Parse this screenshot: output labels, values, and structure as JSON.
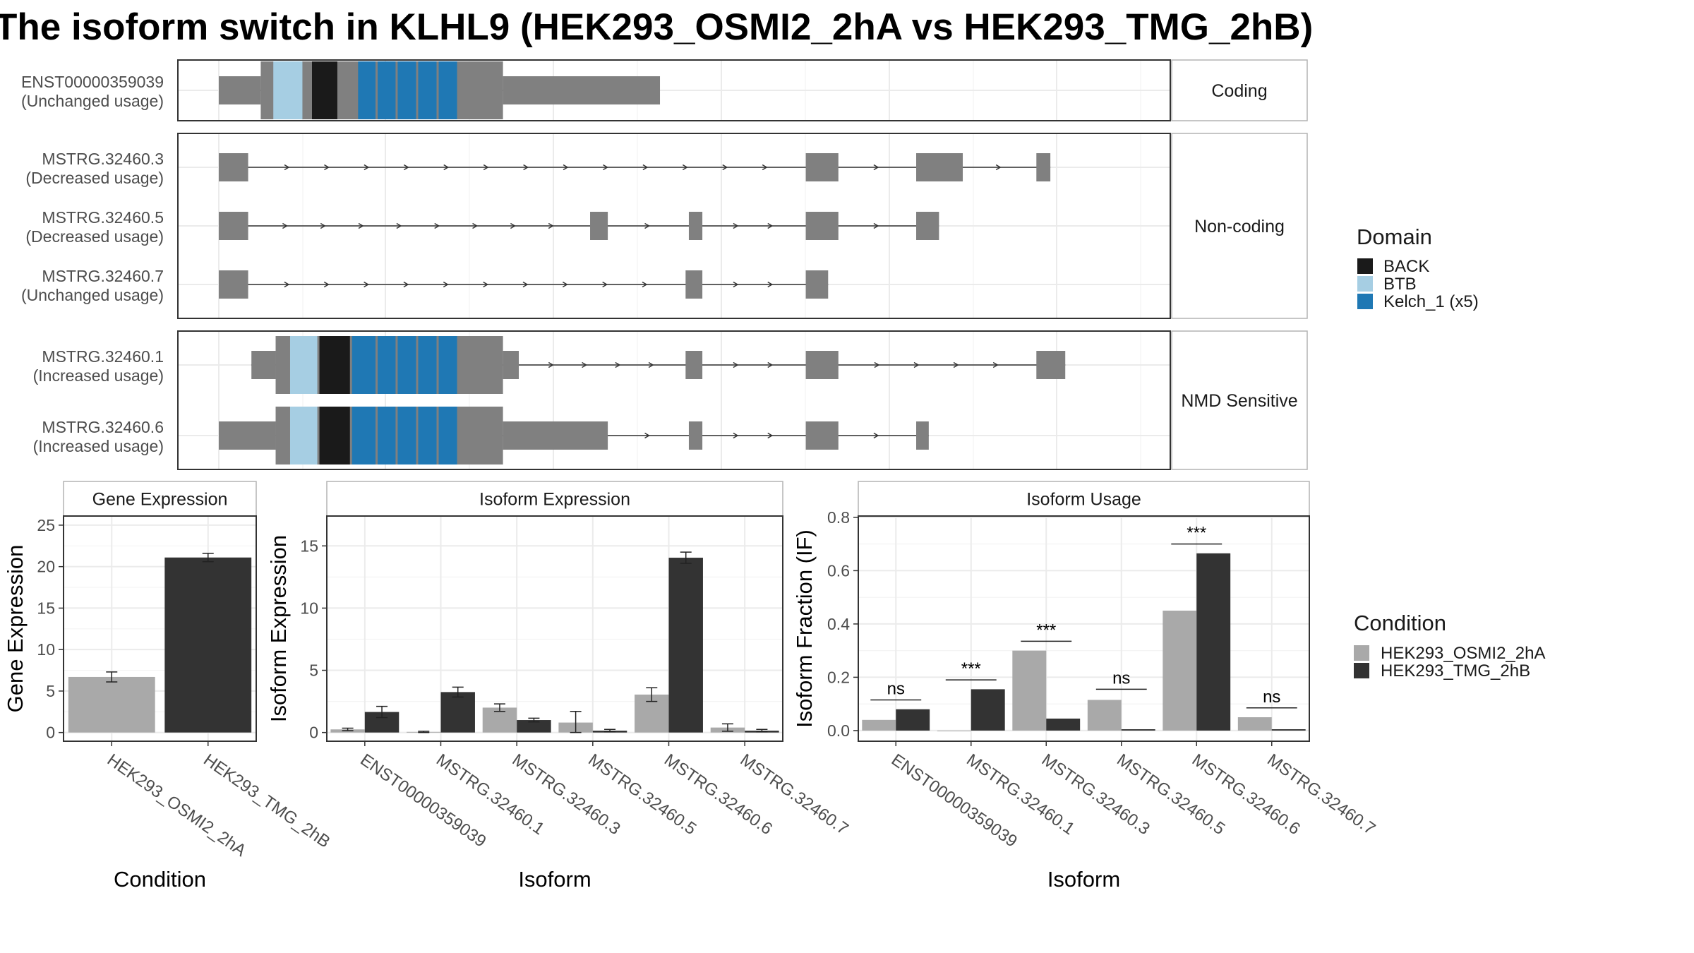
{
  "title": "The isoform switch in KLHL9 (HEK293_OSMI2_2hA vs HEK293_TMG_2hB)",
  "colors": {
    "exon": "#808080",
    "BACK": "#1a1a1a",
    "BTB": "#a6cee3",
    "Kelch": "#1f78b4",
    "cond1": "#a9a9a9",
    "cond2": "#333333",
    "grid": "#ebebeb",
    "panel_border": "#333333",
    "strip_border": "#b3b3b3"
  },
  "transcripts": {
    "groups": [
      {
        "label": "Coding",
        "isoforms": [
          {
            "id": "ENST00000359039",
            "usage": "(Unchanged usage)",
            "exons": [
              [
                0.0,
                0.09,
                "thin"
              ],
              [
                0.09,
                0.61,
                "thick"
              ],
              [
                0.61,
                0.947,
                "thin"
              ]
            ],
            "domains": [
              [
                0.117,
                0.184,
                "BTB"
              ],
              [
                0.2,
                0.259,
                "BACK"
              ],
              [
                0.299,
                0.341,
                "Kelch"
              ],
              [
                0.341,
                0.384,
                "Kelch"
              ],
              [
                0.384,
                0.428,
                "Kelch"
              ],
              [
                0.428,
                0.472,
                "Kelch"
              ],
              [
                0.472,
                0.516,
                "Kelch"
              ]
            ]
          }
        ]
      },
      {
        "label": "Non-coding",
        "isoforms": [
          {
            "id": "MSTRG.32460.3",
            "usage": "(Decreased usage)",
            "exons": [
              [
                0.0,
                0.063,
                "thin"
              ],
              [
                1.26,
                1.33,
                "thin"
              ],
              [
                1.497,
                1.597,
                "thin"
              ],
              [
                1.755,
                1.785,
                "thin"
              ]
            ],
            "domains": []
          },
          {
            "id": "MSTRG.32460.5",
            "usage": "(Decreased usage)",
            "exons": [
              [
                0.0,
                0.063,
                "thin"
              ],
              [
                0.797,
                0.835,
                "thin"
              ],
              [
                1.009,
                1.038,
                "thin"
              ],
              [
                1.26,
                1.33,
                "thin"
              ],
              [
                1.497,
                1.546,
                "thin"
              ]
            ],
            "domains": []
          },
          {
            "id": "MSTRG.32460.7",
            "usage": "(Unchanged usage)",
            "exons": [
              [
                0.0,
                0.063,
                "thin"
              ],
              [
                1.002,
                1.038,
                "thin"
              ],
              [
                1.26,
                1.308,
                "thin"
              ]
            ],
            "domains": []
          }
        ]
      },
      {
        "label": "NMD Sensitive",
        "isoforms": [
          {
            "id": "MSTRG.32460.1",
            "usage": "(Increased usage)",
            "exons": [
              [
                0.07,
                0.122,
                "thin"
              ],
              [
                0.122,
                0.61,
                "thick"
              ],
              [
                0.61,
                0.644,
                "thin"
              ],
              [
                1.002,
                1.038,
                "thin"
              ],
              [
                1.26,
                1.33,
                "thin"
              ],
              [
                1.755,
                1.817,
                "thin"
              ]
            ],
            "domains": [
              [
                0.153,
                0.216,
                "BTB"
              ],
              [
                0.216,
                0.286,
                "BACK"
              ],
              [
                0.286,
                0.341,
                "Kelch"
              ],
              [
                0.341,
                0.384,
                "Kelch"
              ],
              [
                0.384,
                0.428,
                "Kelch"
              ],
              [
                0.428,
                0.472,
                "Kelch"
              ],
              [
                0.472,
                0.516,
                "Kelch"
              ]
            ]
          },
          {
            "id": "MSTRG.32460.6",
            "usage": "(Increased usage)",
            "exons": [
              [
                0.0,
                0.122,
                "thin"
              ],
              [
                0.122,
                0.61,
                "thick"
              ],
              [
                0.61,
                0.835,
                "thin"
              ],
              [
                1.009,
                1.038,
                "thin"
              ],
              [
                1.26,
                1.33,
                "thin"
              ],
              [
                1.497,
                1.524,
                "thin"
              ]
            ],
            "domains": [
              [
                0.153,
                0.216,
                "BTB"
              ],
              [
                0.216,
                0.286,
                "BACK"
              ],
              [
                0.286,
                0.341,
                "Kelch"
              ],
              [
                0.341,
                0.384,
                "Kelch"
              ],
              [
                0.384,
                0.428,
                "Kelch"
              ],
              [
                0.428,
                0.472,
                "Kelch"
              ],
              [
                0.472,
                0.516,
                "Kelch"
              ]
            ]
          }
        ]
      }
    ]
  },
  "legends": {
    "domain_title": "Domain",
    "domain_items": [
      {
        "name": "BACK",
        "key": "BACK"
      },
      {
        "name": "BTB",
        "key": "BTB"
      },
      {
        "name": "Kelch_1 (x5)",
        "key": "Kelch"
      }
    ],
    "condition_title": "Condition",
    "condition_items": [
      {
        "name": "HEK293_OSMI2_2hA",
        "key": "cond1"
      },
      {
        "name": "HEK293_TMG_2hB",
        "key": "cond2"
      }
    ]
  },
  "chart_data": [
    {
      "type": "bar",
      "title": "Gene Expression",
      "xlabel": "Condition",
      "ylabel": "Gene Expression",
      "categories": [
        "HEK293_OSMI2_2hA",
        "HEK293_TMG_2hB"
      ],
      "values": [
        6.7,
        21.1
      ],
      "errors": [
        [
          6.1,
          7.3
        ],
        [
          20.6,
          21.6
        ]
      ],
      "ylim": [
        -1.05,
        26.1
      ],
      "yticks": [
        0,
        5,
        10,
        15,
        20,
        25
      ]
    },
    {
      "type": "bar",
      "title": "Isoform Expression",
      "xlabel": "Isoform",
      "ylabel": "Isoform Expression",
      "categories": [
        "ENST00000359039",
        "MSTRG.32460.1",
        "MSTRG.32460.3",
        "MSTRG.32460.5",
        "MSTRG.32460.6",
        "MSTRG.32460.7"
      ],
      "series": [
        {
          "name": "HEK293_OSMI2_2hA",
          "values": [
            0.25,
            0.05,
            2.0,
            0.8,
            3.05,
            0.4
          ],
          "errors": [
            [
              0.15,
              0.35
            ],
            [
              0.0,
              0.1
            ],
            [
              1.7,
              2.3
            ],
            [
              0.0,
              1.7
            ],
            [
              2.5,
              3.6
            ],
            [
              0.1,
              0.7
            ]
          ]
        },
        {
          "name": "HEK293_TMG_2hB",
          "values": [
            1.65,
            3.25,
            1.0,
            0.15,
            14.05,
            0.15
          ],
          "errors": [
            [
              1.2,
              2.1
            ],
            [
              2.85,
              3.65
            ],
            [
              0.85,
              1.15
            ],
            [
              0.05,
              0.25
            ],
            [
              13.6,
              14.5
            ],
            [
              0.05,
              0.25
            ]
          ]
        }
      ],
      "ylim": [
        -0.7,
        17.4
      ],
      "yticks": [
        0,
        5,
        10,
        15
      ]
    },
    {
      "type": "bar",
      "title": "Isoform Usage",
      "xlabel": "Isoform",
      "ylabel": "Isoform Fraction (IF)",
      "categories": [
        "ENST00000359039",
        "MSTRG.32460.1",
        "MSTRG.32460.3",
        "MSTRG.32460.5",
        "MSTRG.32460.6",
        "MSTRG.32460.7"
      ],
      "series": [
        {
          "name": "HEK293_OSMI2_2hA",
          "values": [
            0.04,
            0.0,
            0.3,
            0.115,
            0.45,
            0.05
          ]
        },
        {
          "name": "HEK293_TMG_2hB",
          "values": [
            0.08,
            0.155,
            0.045,
            0.005,
            0.665,
            0.005
          ]
        }
      ],
      "annotations": [
        "ns",
        "***",
        "***",
        "ns",
        "***",
        "ns"
      ],
      "annotation_y": [
        0.115,
        0.19,
        0.335,
        0.155,
        0.7,
        0.085
      ],
      "ylim": [
        -0.04,
        0.805
      ],
      "yticks": [
        0.0,
        0.2,
        0.4,
        0.6,
        0.8
      ],
      "ytick_labels": [
        "0.0",
        "0.2",
        "0.4",
        "0.6",
        "0.8"
      ]
    }
  ]
}
